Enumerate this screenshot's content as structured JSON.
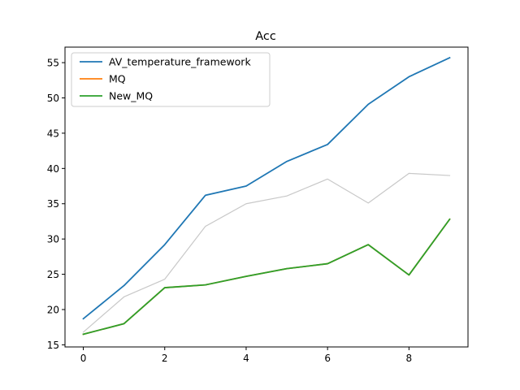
{
  "chart_data": {
    "type": "line",
    "title": "Acc",
    "xlabel": "",
    "ylabel": "",
    "x": [
      0,
      1,
      2,
      3,
      4,
      5,
      6,
      7,
      8,
      9
    ],
    "xlim": [
      -0.45,
      9.45
    ],
    "ylim": [
      14.7,
      57.2
    ],
    "xticks": [
      0,
      2,
      4,
      6,
      8
    ],
    "yticks": [
      15,
      20,
      25,
      30,
      35,
      40,
      45,
      50,
      55
    ],
    "grid": false,
    "legend_position": "top-left",
    "series": [
      {
        "name": "AV_temperature_framework",
        "color": "#1f77b4",
        "in_legend": true,
        "values": [
          18.7,
          23.4,
          29.2,
          36.2,
          37.5,
          41.0,
          43.4,
          49.1,
          53.0,
          55.7
        ]
      },
      {
        "name": "MQ",
        "color": "#ff7f0e",
        "in_legend": true,
        "values": [
          16.5,
          18.0,
          23.1,
          23.5,
          24.7,
          25.8,
          26.5,
          29.2,
          24.9,
          32.8
        ]
      },
      {
        "name": "New_MQ",
        "color": "#2ca02c",
        "in_legend": true,
        "values": [
          16.5,
          18.0,
          23.1,
          23.5,
          24.7,
          25.8,
          26.5,
          29.2,
          24.9,
          32.8
        ]
      },
      {
        "name": "",
        "color": "#c8c8c8",
        "in_legend": false,
        "values": [
          16.8,
          21.8,
          24.3,
          31.8,
          35.0,
          36.1,
          38.5,
          35.1,
          39.3,
          39.0
        ]
      }
    ]
  }
}
